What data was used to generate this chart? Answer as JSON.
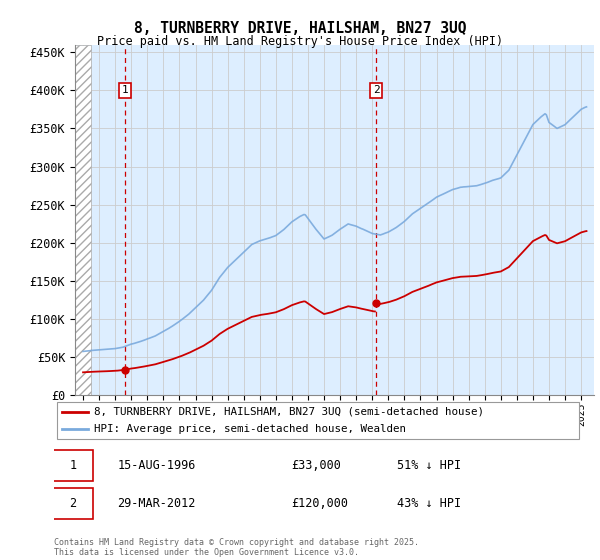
{
  "title_line1": "8, TURNBERRY DRIVE, HAILSHAM, BN27 3UQ",
  "title_line2": "Price paid vs. HM Land Registry's House Price Index (HPI)",
  "legend_entry1": "8, TURNBERRY DRIVE, HAILSHAM, BN27 3UQ (semi-detached house)",
  "legend_entry2": "HPI: Average price, semi-detached house, Wealden",
  "footer": "Contains HM Land Registry data © Crown copyright and database right 2025.\nThis data is licensed under the Open Government Licence v3.0.",
  "annotation1_date": "15-AUG-1996",
  "annotation1_price": "£33,000",
  "annotation1_hpi": "51% ↓ HPI",
  "annotation2_date": "29-MAR-2012",
  "annotation2_price": "£120,000",
  "annotation2_hpi": "43% ↓ HPI",
  "purchase1_x": 1996.62,
  "purchase1_y": 33000,
  "purchase2_x": 2012.24,
  "purchase2_y": 120000,
  "hpi_color": "#7aaadd",
  "price_color": "#cc0000",
  "annotation_box_color": "#cc0000",
  "grid_color": "#cccccc",
  "bg_color": "#ddeeff",
  "ylim_min": 0,
  "ylim_max": 460000,
  "xlim_min": 1993.5,
  "xlim_max": 2025.8,
  "yticks": [
    0,
    50000,
    100000,
    150000,
    200000,
    250000,
    300000,
    350000,
    400000,
    450000
  ],
  "ytick_labels": [
    "£0",
    "£50K",
    "£100K",
    "£150K",
    "£200K",
    "£250K",
    "£300K",
    "£350K",
    "£400K",
    "£450K"
  ]
}
